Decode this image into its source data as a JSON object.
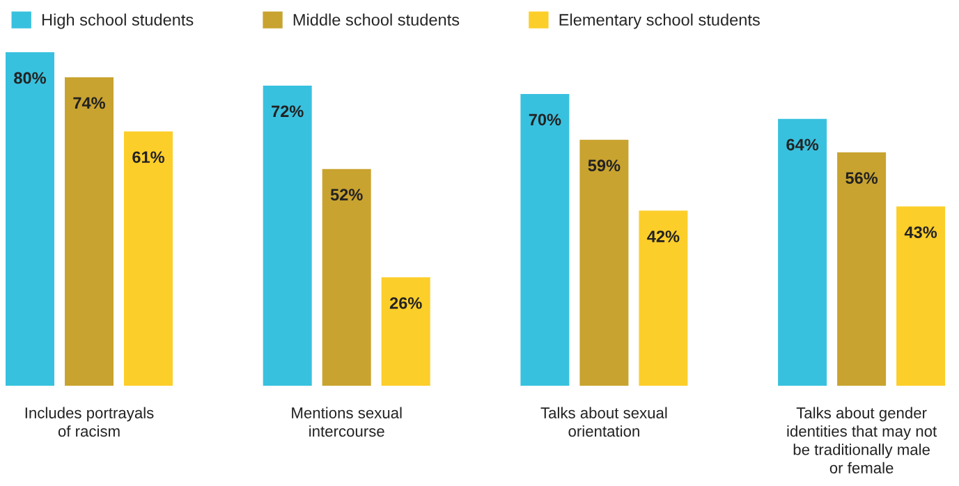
{
  "chart_data": {
    "type": "bar",
    "categories": [
      "Includes portrayals\nof racism",
      "Mentions sexual\nintercourse",
      "Talks about sexual\norientation",
      "Talks about gender\nidentities that may not\nbe traditionally male\nor female"
    ],
    "series": [
      {
        "name": "High school students",
        "color": "#38c1df",
        "values": [
          80,
          72,
          70,
          64
        ],
        "value_labels": [
          "80%",
          "72%",
          "70%",
          "64%"
        ]
      },
      {
        "name": "Middle school students",
        "color": "#c9a32f",
        "values": [
          74,
          52,
          59,
          56
        ],
        "value_labels": [
          "74%",
          "52%",
          "59%",
          "56%"
        ]
      },
      {
        "name": "Elementary school students",
        "color": "#fcce2a",
        "values": [
          61,
          26,
          42,
          43
        ],
        "value_labels": [
          "61%",
          "26%",
          "42%",
          "43%"
        ]
      }
    ],
    "grid": false,
    "legend": "top left"
  }
}
